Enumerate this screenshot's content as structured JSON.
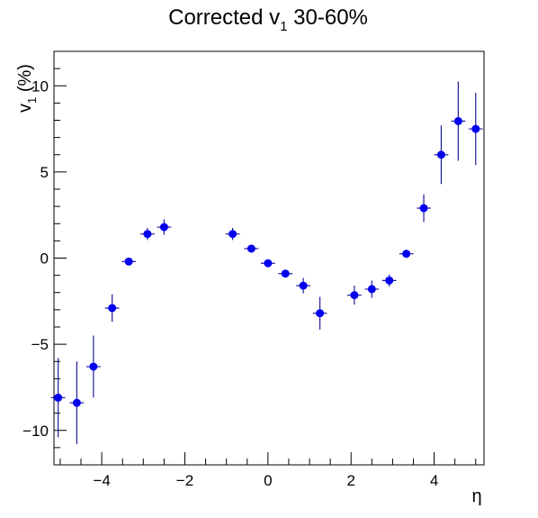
{
  "chart_data": {
    "type": "scatter",
    "title": "Corrected v1 30-60%",
    "xlabel": "η",
    "ylabel": "v1 (%)",
    "xlim": [
      -5.15,
      5.2
    ],
    "ylim": [
      -12.0,
      12.0
    ],
    "xticks": [
      {
        "v": -4,
        "label": "−4"
      },
      {
        "v": -2,
        "label": "−2"
      },
      {
        "v": 0,
        "label": "0"
      },
      {
        "v": 2,
        "label": "2"
      },
      {
        "v": 4,
        "label": "4"
      }
    ],
    "yticks": [
      {
        "v": -10,
        "label": "−10"
      },
      {
        "v": -5,
        "label": "−5"
      },
      {
        "v": 0,
        "label": "0"
      },
      {
        "v": 5,
        "label": "5"
      },
      {
        "v": 10,
        "label": "10"
      }
    ],
    "marker_color": "#0000ee",
    "errorbar_color": "#1d1d9f",
    "x_bin_half_width": 0.17,
    "points": [
      {
        "x": -5.05,
        "y": -8.1,
        "err": 2.3
      },
      {
        "x": -4.6,
        "y": -8.4,
        "err": 2.4
      },
      {
        "x": -4.2,
        "y": -6.3,
        "err": 1.8
      },
      {
        "x": -3.75,
        "y": -2.9,
        "err": 0.8
      },
      {
        "x": -3.35,
        "y": -0.2,
        "err": 0.1
      },
      {
        "x": -2.9,
        "y": 1.4,
        "err": 0.35
      },
      {
        "x": -2.5,
        "y": 1.8,
        "err": 0.45
      },
      {
        "x": -0.85,
        "y": 1.4,
        "err": 0.35
      },
      {
        "x": -0.4,
        "y": 0.55,
        "err": 0.15
      },
      {
        "x": 0.0,
        "y": -0.3,
        "err": 0.1
      },
      {
        "x": 0.42,
        "y": -0.9,
        "err": 0.2
      },
      {
        "x": 0.85,
        "y": -1.6,
        "err": 0.45
      },
      {
        "x": 1.25,
        "y": -3.2,
        "err": 0.95
      },
      {
        "x": 2.08,
        "y": -2.15,
        "err": 0.55
      },
      {
        "x": 2.5,
        "y": -1.8,
        "err": 0.5
      },
      {
        "x": 2.92,
        "y": -1.3,
        "err": 0.35
      },
      {
        "x": 3.33,
        "y": 0.25,
        "err": 0.1
      },
      {
        "x": 3.75,
        "y": 2.9,
        "err": 0.8
      },
      {
        "x": 4.17,
        "y": 6.0,
        "err": 1.7
      },
      {
        "x": 4.58,
        "y": 7.95,
        "err": 2.3
      },
      {
        "x": 5.0,
        "y": 7.5,
        "err": 2.1
      }
    ]
  }
}
